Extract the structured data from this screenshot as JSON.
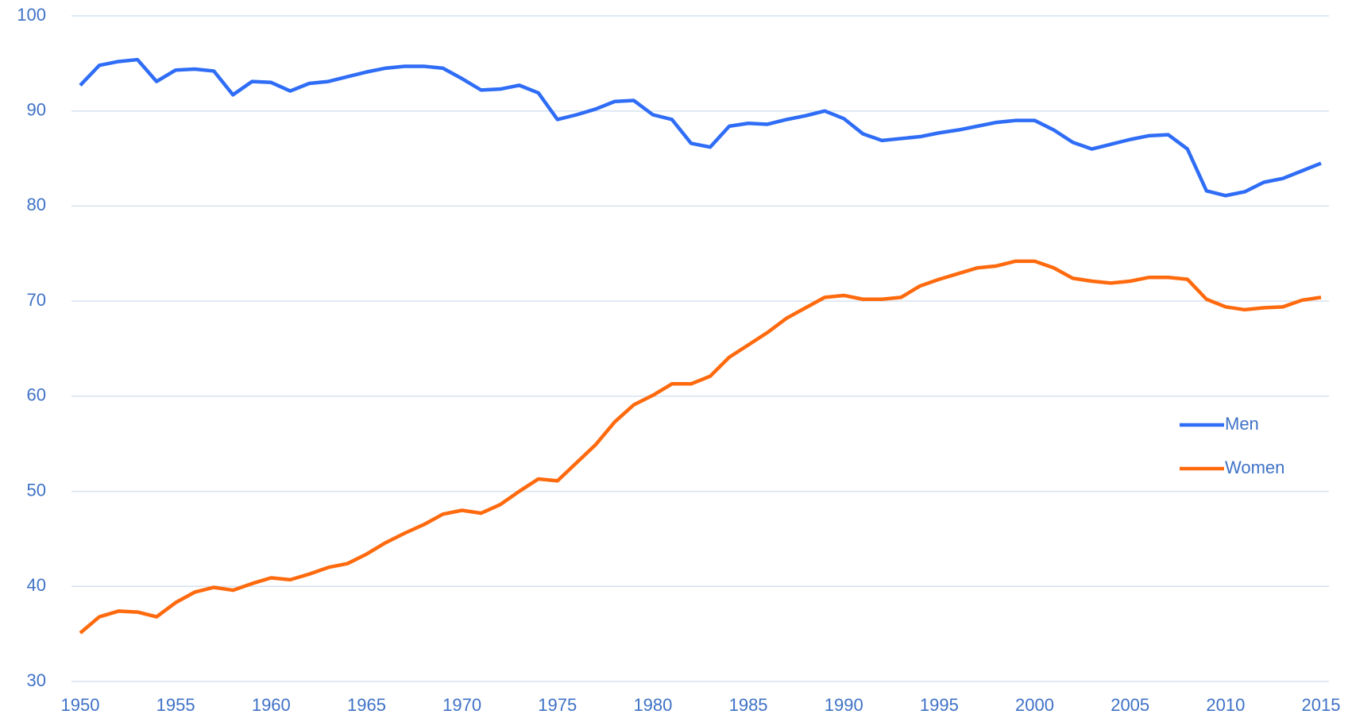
{
  "chart_data": {
    "type": "line",
    "x": [
      1950,
      1951,
      1952,
      1953,
      1954,
      1955,
      1956,
      1957,
      1958,
      1959,
      1960,
      1961,
      1962,
      1963,
      1964,
      1965,
      1966,
      1967,
      1968,
      1969,
      1970,
      1971,
      1972,
      1973,
      1974,
      1975,
      1976,
      1977,
      1978,
      1979,
      1980,
      1981,
      1982,
      1983,
      1984,
      1985,
      1986,
      1987,
      1988,
      1989,
      1990,
      1991,
      1992,
      1993,
      1994,
      1995,
      1996,
      1997,
      1998,
      1999,
      2000,
      2001,
      2002,
      2003,
      2004,
      2005,
      2006,
      2007,
      2008,
      2009,
      2010,
      2011,
      2012,
      2013,
      2014,
      2015
    ],
    "series": [
      {
        "name": "Men",
        "color": "#2f6df6",
        "values": [
          92.7,
          94.8,
          95.2,
          95.4,
          93.1,
          94.3,
          94.4,
          94.2,
          91.7,
          93.1,
          93.0,
          92.1,
          92.9,
          93.1,
          93.6,
          94.1,
          94.5,
          94.7,
          94.7,
          94.5,
          93.4,
          92.2,
          92.3,
          92.7,
          91.9,
          89.1,
          89.6,
          90.2,
          91.0,
          91.1,
          89.6,
          89.1,
          86.6,
          86.2,
          88.4,
          88.7,
          88.6,
          89.1,
          89.5,
          90.0,
          89.2,
          87.6,
          86.9,
          87.1,
          87.3,
          87.7,
          88.0,
          88.4,
          88.8,
          89.0,
          89.0,
          88.0,
          86.7,
          86.0,
          86.5,
          87.0,
          87.4,
          87.5,
          86.0,
          81.6,
          81.1,
          81.5,
          82.5,
          82.9,
          83.7,
          84.5
        ]
      },
      {
        "name": "Women",
        "color": "#ff6a0e",
        "values": [
          35.1,
          36.8,
          37.4,
          37.3,
          36.8,
          38.3,
          39.4,
          39.9,
          39.6,
          40.3,
          40.9,
          40.7,
          41.3,
          42.0,
          42.4,
          43.4,
          44.6,
          45.6,
          46.5,
          47.6,
          48.0,
          47.7,
          48.6,
          50.0,
          51.3,
          51.1,
          53.0,
          54.9,
          57.3,
          59.1,
          60.1,
          61.3,
          61.3,
          62.1,
          64.1,
          65.4,
          66.7,
          68.2,
          69.3,
          70.4,
          70.6,
          70.2,
          70.2,
          70.4,
          71.6,
          72.3,
          72.9,
          73.5,
          73.7,
          74.2,
          74.2,
          73.5,
          72.4,
          72.1,
          71.9,
          72.1,
          72.5,
          72.5,
          72.3,
          70.2,
          69.4,
          69.1,
          69.3,
          69.4,
          70.1,
          70.4
        ]
      }
    ],
    "xlim": [
      1950,
      2015
    ],
    "xticks": [
      1950,
      1955,
      1960,
      1965,
      1970,
      1975,
      1980,
      1985,
      1990,
      1995,
      2000,
      2005,
      2010,
      2015
    ],
    "ylim": [
      30,
      100
    ],
    "yticks": [
      30,
      40,
      50,
      60,
      70,
      80,
      90,
      100
    ],
    "grid": true,
    "legend": "right"
  }
}
